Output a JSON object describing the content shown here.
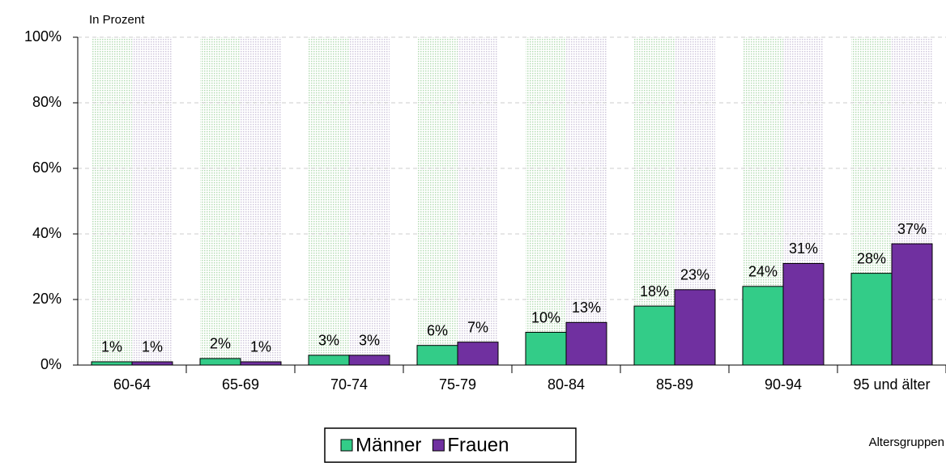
{
  "chart_data": {
    "type": "bar",
    "y_axis_label": "In Prozent",
    "x_axis_label": "Altersgruppen",
    "categories": [
      "60-64",
      "65-69",
      "70-74",
      "75-79",
      "80-84",
      "85-89",
      "90-94",
      "95 und älter"
    ],
    "series": [
      {
        "name": "Männer",
        "color": "#33cc88",
        "values": [
          1,
          2,
          3,
          6,
          10,
          18,
          24,
          28
        ],
        "value_labels": [
          "1%",
          "2%",
          "3%",
          "6%",
          "10%",
          "18%",
          "24%",
          "28%"
        ]
      },
      {
        "name": "Frauen",
        "color": "#7030a0",
        "values": [
          1,
          1,
          3,
          7,
          13,
          23,
          31,
          37
        ],
        "value_labels": [
          "1%",
          "1%",
          "3%",
          "7%",
          "13%",
          "23%",
          "31%",
          "37%"
        ]
      }
    ],
    "ylim": [
      0,
      100
    ],
    "yticks": [
      {
        "value": 0,
        "label": "0%"
      },
      {
        "value": 20,
        "label": "20%"
      },
      {
        "value": 40,
        "label": "40%"
      },
      {
        "value": 60,
        "label": "60%"
      },
      {
        "value": 80,
        "label": "80%"
      },
      {
        "value": 100,
        "label": "100%"
      }
    ],
    "grid": true,
    "legend": "bottom"
  }
}
